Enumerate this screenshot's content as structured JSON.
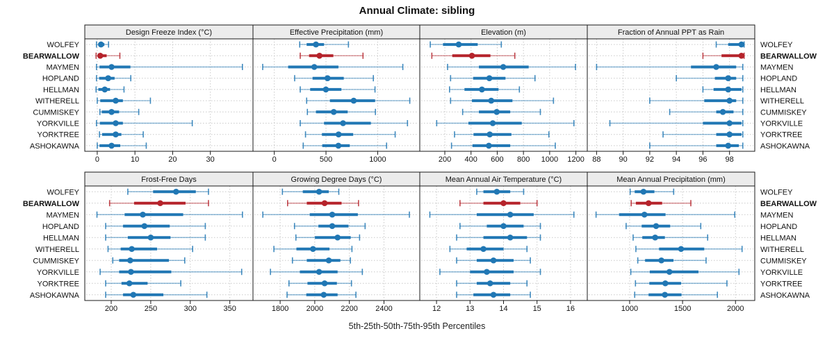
{
  "title": "Annual Climate: sibling",
  "footer": "5th-25th-50th-75th-95th Percentiles",
  "stations": [
    "WOLFEY",
    "BEARWALLOW",
    "MAYMEN",
    "HOPLAND",
    "HELLMAN",
    "WITHERELL",
    "CUMMISKEY",
    "YORKVILLE",
    "YORKTREE",
    "ASHOKAWNA"
  ],
  "highlight_station": "BEARWALLOW",
  "percentile_labels": [
    "5th",
    "25th",
    "50th",
    "75th",
    "95th"
  ],
  "colors": {
    "series": "#2077b4",
    "highlight": "#b5232b",
    "grid": "#c9c9c9",
    "panel_border": "#1a1a1a",
    "header_bg": "#ececec",
    "text": "#111111"
  },
  "chart_data": [
    {
      "type": "scatter",
      "style": "percentile-intervals",
      "title": "Design Freeze Index (°C)",
      "xlim": [
        -3.3,
        41.3
      ],
      "ticks": [
        0,
        10,
        20,
        30
      ],
      "grid": true,
      "percentiles": {
        "WOLFEY": [
          -0.2,
          0.3,
          1.0,
          1.9,
          3.0
        ],
        "BEARWALLOW": [
          -0.3,
          0.3,
          0.8,
          2.5,
          6.0
        ],
        "MAYMEN": [
          -0.2,
          0.6,
          3.8,
          8.8,
          38.5
        ],
        "HOPLAND": [
          -0.2,
          0.5,
          2.9,
          4.6,
          8.9
        ],
        "HELLMAN": [
          -0.3,
          0.3,
          2.0,
          3.4,
          7.1
        ],
        "WITHERELL": [
          0.0,
          0.8,
          4.9,
          6.8,
          14.1
        ],
        "CUMMISKEY": [
          0.7,
          1.2,
          3.8,
          5.8,
          11.0
        ],
        "YORKVILLE": [
          -0.2,
          0.7,
          4.9,
          6.8,
          25.2
        ],
        "YORKTREE": [
          0.6,
          1.3,
          4.9,
          6.4,
          12.2
        ],
        "ASHOKAWNA": [
          0.0,
          0.6,
          3.8,
          6.1,
          13.0
        ]
      }
    },
    {
      "type": "scatter",
      "style": "percentile-intervals",
      "title": "Effective Precipitation (mm)",
      "xlim": [
        -206,
        1407
      ],
      "ticks": [
        0,
        500,
        1000
      ],
      "grid": true,
      "percentiles": {
        "WOLFEY": [
          246,
          313,
          403,
          481,
          717
        ],
        "BEARWALLOW": [
          251,
          336,
          437,
          571,
          858
        ],
        "MAYMEN": [
          -112,
          134,
          387,
          620,
          1243
        ],
        "HOPLAND": [
          197,
          370,
          515,
          672,
          958
        ],
        "HELLMAN": [
          251,
          347,
          499,
          649,
          974
        ],
        "WITHERELL": [
          313,
          538,
          768,
          975,
          1310
        ],
        "CUMMISKEY": [
          320,
          403,
          575,
          710,
          978
        ],
        "YORKVILLE": [
          251,
          481,
          665,
          934,
          1288
        ],
        "YORKTREE": [
          302,
          461,
          622,
          763,
          1169
        ],
        "ASHOKAWNA": [
          280,
          464,
          620,
          730,
          1086
        ]
      }
    },
    {
      "type": "scatter",
      "style": "percentile-intervals",
      "title": "Elevation (m)",
      "xlim": [
        9,
        1287
      ],
      "ticks": [
        200,
        400,
        600,
        800,
        1000,
        1200
      ],
      "grid": true,
      "percentiles": {
        "WOLFEY": [
          89,
          186,
          306,
          451,
          631
        ],
        "BEARWALLOW": [
          101,
          257,
          407,
          548,
          734
        ],
        "MAYMEN": [
          221,
          460,
          646,
          840,
          1197
        ],
        "HOPLAND": [
          244,
          416,
          540,
          663,
          888
        ],
        "HELLMAN": [
          236,
          350,
          483,
          610,
          769
        ],
        "WITHERELL": [
          244,
          407,
          554,
          716,
          1029
        ],
        "CUMMISKEY": [
          336,
          460,
          596,
          699,
          929
        ],
        "YORKVILLE": [
          138,
          380,
          566,
          787,
          1185
        ],
        "YORKTREE": [
          274,
          419,
          543,
          708,
          994
        ],
        "ASHOKAWNA": [
          251,
          411,
          536,
          699,
          1043
        ]
      }
    },
    {
      "type": "scatter",
      "style": "percentile-intervals",
      "title": "Fraction of Annual PPT as Rain",
      "xlim": [
        87.3,
        99.9
      ],
      "ticks": [
        88,
        90,
        92,
        94,
        96,
        98
      ],
      "grid": true,
      "percentiles": {
        "WOLFEY": [
          97.0,
          97.9,
          98.9,
          99.0,
          99.1
        ],
        "BEARWALLOW": [
          96.0,
          97.4,
          98.9,
          99.0,
          99.1
        ],
        "MAYMEN": [
          88.0,
          95.1,
          97.0,
          98.5,
          99.0
        ],
        "HOPLAND": [
          94.0,
          96.9,
          97.9,
          98.5,
          99.0
        ],
        "HELLMAN": [
          96.0,
          96.8,
          97.9,
          98.9,
          99.0
        ],
        "WITHERELL": [
          92.0,
          96.1,
          98.0,
          98.5,
          99.0
        ],
        "CUMMISKEY": [
          93.5,
          97.0,
          97.5,
          98.3,
          99.0
        ],
        "YORKVILLE": [
          89.0,
          96.0,
          98.0,
          98.9,
          99.0
        ],
        "YORKTREE": [
          93.0,
          97.0,
          98.0,
          98.9,
          99.0
        ],
        "ASHOKAWNA": [
          92.0,
          97.0,
          97.9,
          98.7,
          99.0
        ]
      }
    },
    {
      "type": "scatter",
      "style": "percentile-intervals",
      "title": "Frost-Free Days",
      "xlim": [
        166.6,
        379.3
      ],
      "ticks": [
        200,
        250,
        300,
        350
      ],
      "grid": true,
      "percentiles": {
        "WOLFEY": [
          221,
          253,
          282,
          307,
          323
        ],
        "BEARWALLOW": [
          198,
          229,
          262,
          294,
          323
        ],
        "MAYMEN": [
          182,
          217,
          240,
          291,
          366
        ],
        "HOPLAND": [
          193,
          215,
          242,
          274,
          319
        ],
        "HELLMAN": [
          193,
          221,
          250,
          275,
          319
        ],
        "WITHERELL": [
          196,
          212,
          226,
          258,
          303
        ],
        "CUMMISKEY": [
          202,
          210,
          224,
          273,
          293
        ],
        "YORKVILLE": [
          186,
          210,
          225,
          276,
          365
        ],
        "YORKTREE": [
          193,
          213,
          223,
          246,
          288
        ],
        "ASHOKAWNA": [
          193,
          215,
          228,
          266,
          321
        ]
      }
    },
    {
      "type": "scatter",
      "style": "percentile-intervals",
      "title": "Growing Degree Days (°C)",
      "xlim": [
        1643,
        2607
      ],
      "ticks": [
        1800,
        2000,
        2200,
        2400
      ],
      "grid": true,
      "percentiles": {
        "WOLFEY": [
          1813,
          1931,
          2025,
          2081,
          2139
        ],
        "BEARWALLOW": [
          1843,
          1954,
          2057,
          2155,
          2253
        ],
        "MAYMEN": [
          1700,
          1971,
          2101,
          2249,
          2547
        ],
        "HOPLAND": [
          1883,
          2021,
          2101,
          2195,
          2291
        ],
        "HELLMAN": [
          1891,
          2001,
          2132,
          2208,
          2259
        ],
        "WITHERELL": [
          1764,
          1894,
          1990,
          2085,
          2215
        ],
        "CUMMISKEY": [
          1871,
          1954,
          2081,
          2148,
          2206
        ],
        "YORKVILLE": [
          1744,
          1914,
          2025,
          2132,
          2275
        ],
        "YORKTREE": [
          1851,
          1958,
          2057,
          2128,
          2212
        ],
        "ASHOKAWNA": [
          1840,
          1951,
          2052,
          2132,
          2238
        ]
      }
    },
    {
      "type": "scatter",
      "style": "percentile-intervals",
      "title": "Mean Annual Air Temperature (°C)",
      "xlim": [
        11.5,
        16.5
      ],
      "ticks": [
        12,
        13,
        14,
        15,
        16
      ],
      "grid": true,
      "percentiles": {
        "WOLFEY": [
          13.2,
          13.4,
          13.8,
          14.2,
          14.6
        ],
        "BEARWALLOW": [
          12.7,
          13.4,
          14.0,
          14.5,
          15.0
        ],
        "MAYMEN": [
          11.8,
          13.2,
          14.2,
          14.9,
          16.1
        ],
        "HOPLAND": [
          12.7,
          13.5,
          14.0,
          14.6,
          15.1
        ],
        "HELLMAN": [
          12.6,
          13.4,
          14.2,
          14.7,
          15.1
        ],
        "WITHERELL": [
          12.4,
          12.9,
          13.4,
          14.0,
          14.7
        ],
        "CUMMISKEY": [
          12.6,
          13.2,
          13.7,
          14.3,
          14.8
        ],
        "YORKVILLE": [
          12.1,
          13.0,
          13.5,
          14.3,
          15.1
        ],
        "YORKTREE": [
          12.6,
          13.2,
          13.6,
          14.2,
          14.7
        ],
        "ASHOKAWNA": [
          12.6,
          13.1,
          13.7,
          14.2,
          14.8
        ]
      }
    },
    {
      "type": "scatter",
      "style": "percentile-intervals",
      "title": "Mean Annual Precipitation (mm)",
      "xlim": [
        600,
        2182
      ],
      "ticks": [
        1000,
        1500,
        2000
      ],
      "grid": true,
      "percentiles": {
        "WOLFEY": [
          1005,
          1048,
          1131,
          1234,
          1416
        ],
        "BEARWALLOW": [
          1015,
          1059,
          1179,
          1307,
          1578
        ],
        "MAYMEN": [
          683,
          900,
          1140,
          1339,
          1993
        ],
        "HOPLAND": [
          967,
          1114,
          1250,
          1383,
          1672
        ],
        "HELLMAN": [
          1033,
          1120,
          1241,
          1333,
          1737
        ],
        "WITHERELL": [
          1059,
          1278,
          1486,
          1705,
          2062
        ],
        "CUMMISKEY": [
          1077,
          1146,
          1300,
          1414,
          1722
        ],
        "YORKVILLE": [
          1011,
          1190,
          1376,
          1650,
          2033
        ],
        "YORKTREE": [
          1055,
          1186,
          1337,
          1486,
          1919
        ],
        "ASHOKAWNA": [
          1048,
          1179,
          1333,
          1490,
          1829
        ]
      }
    }
  ]
}
